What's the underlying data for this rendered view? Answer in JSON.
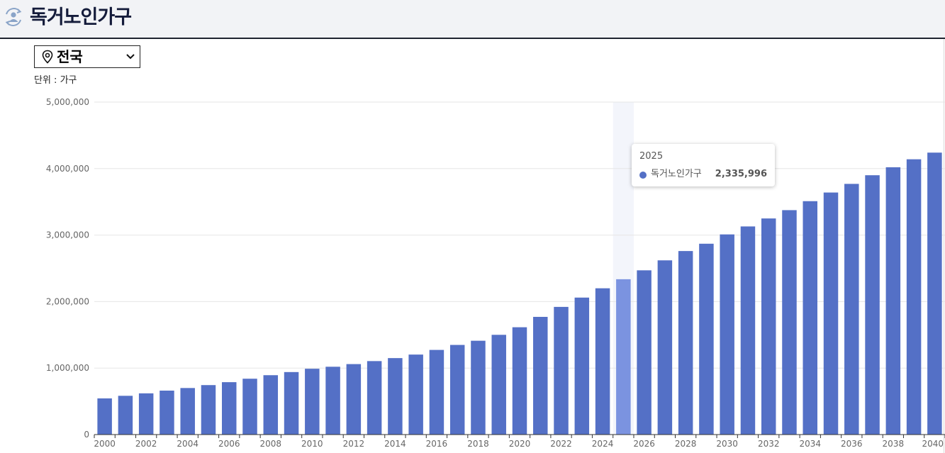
{
  "header": {
    "title": "독거노인가구",
    "icon": "user-refresh-icon"
  },
  "region_select": {
    "selected": "전국",
    "icon": "location-pin-icon"
  },
  "unit_label": "단위 : 가구",
  "colors": {
    "bar": "#5470c6",
    "bar_highlight": "#7b93e0",
    "hover_band": "#f3f5fb",
    "grid": "#e6e6e6",
    "axis": "#333333"
  },
  "tooltip": {
    "year": "2025",
    "series_name": "독거노인가구",
    "value": "2,335,996"
  },
  "chart_data": {
    "type": "bar",
    "categories": [
      "2000",
      "2001",
      "2002",
      "2003",
      "2004",
      "2005",
      "2006",
      "2007",
      "2008",
      "2009",
      "2010",
      "2011",
      "2012",
      "2013",
      "2014",
      "2015",
      "2016",
      "2017",
      "2018",
      "2019",
      "2020",
      "2021",
      "2022",
      "2023",
      "2024",
      "2025",
      "2026",
      "2027",
      "2028",
      "2029",
      "2030",
      "2031",
      "2032",
      "2033",
      "2034",
      "2035",
      "2036",
      "2037",
      "2038",
      "2039",
      "2040"
    ],
    "series": [
      {
        "name": "독거노인가구",
        "values": [
          544000,
          583000,
          620000,
          661000,
          700000,
          744000,
          788000,
          840000,
          893000,
          940000,
          990000,
          1020000,
          1060000,
          1105000,
          1150000,
          1203000,
          1273000,
          1348000,
          1411000,
          1500000,
          1614000,
          1770000,
          1920000,
          2060000,
          2200000,
          2335996,
          2470000,
          2620000,
          2760000,
          2870000,
          3010000,
          3130000,
          3250000,
          3375000,
          3510000,
          3640000,
          3770000,
          3900000,
          4020000,
          4140000,
          4240000
        ]
      }
    ],
    "x_tick_labels": [
      "2000",
      "2002",
      "2004",
      "2006",
      "2008",
      "2010",
      "2012",
      "2014",
      "2016",
      "2018",
      "2020",
      "2022",
      "2024",
      "2026",
      "2028",
      "2030",
      "2032",
      "2034",
      "2036",
      "2038",
      "2040"
    ],
    "y_tick_labels": [
      "0",
      "1,000,000",
      "2,000,000",
      "3,000,000",
      "4,000,000",
      "5,000,000"
    ],
    "ylim": [
      0,
      5000000
    ],
    "highlighted_category": "2025",
    "grid": true,
    "xlabel": "",
    "ylabel": ""
  }
}
